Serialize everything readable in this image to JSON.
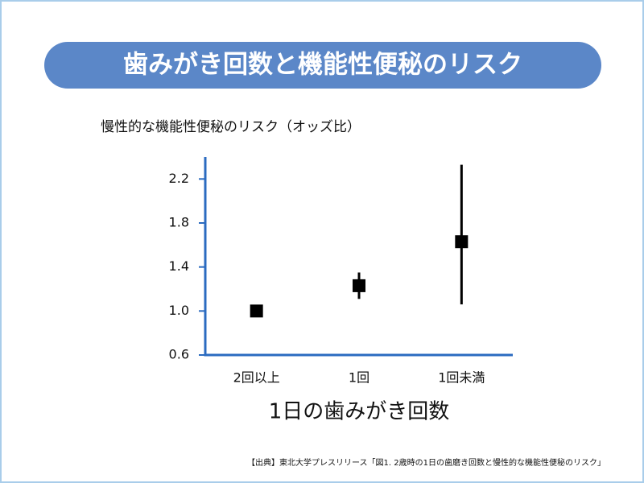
{
  "chart_data": {
    "type": "errorbar",
    "title": "歯みがき回数と機能性便秘のリスク",
    "ylabel": "慢性的な機能性便秘のリスク（オッズ比）",
    "xlabel": "1日の歯みがき回数",
    "source": "【出典】東北大学プレスリリース「図1. 2歳時の1日の歯磨き回数と慢性的な機能性便秘のリスク」",
    "categories": [
      "2回以上",
      "1回",
      "1回未満"
    ],
    "values": [
      1,
      1.23,
      1.63
    ],
    "ci_low": [
      null,
      1.11,
      1.06
    ],
    "ci_high": [
      null,
      1.35,
      2.33
    ],
    "color": "#000000",
    "axis_color": "#2b6bc0",
    "ylim": [
      0.6,
      2.4
    ],
    "yticks": [
      0.6,
      {
        "value": 1,
        "label": "1.0"
      },
      1.4,
      1.8,
      2.2
    ]
  }
}
